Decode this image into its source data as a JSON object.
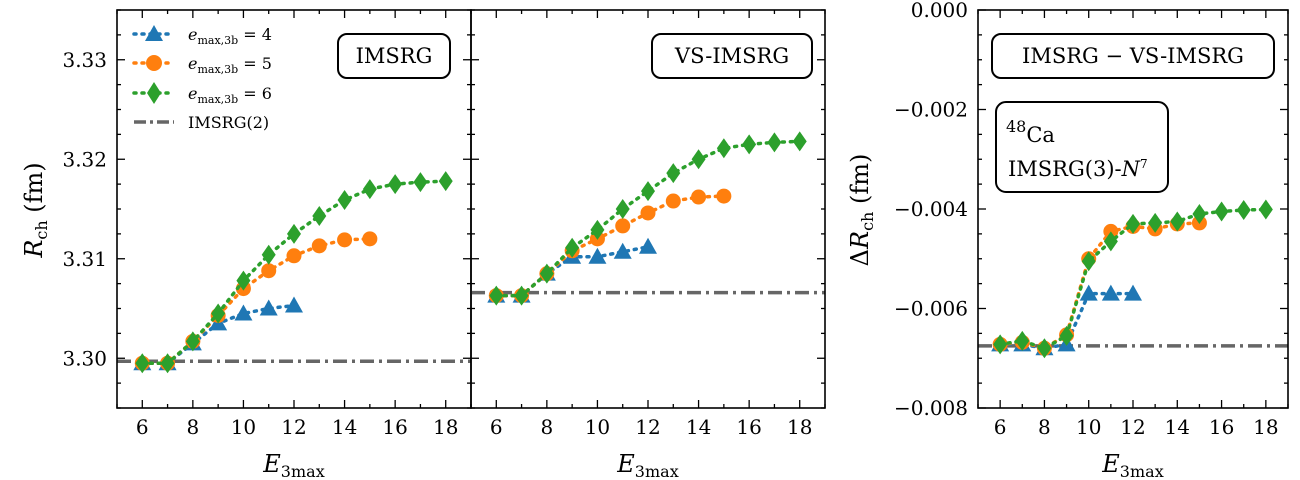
{
  "chart_data": [
    {
      "type": "line",
      "label_box": "IMSRG",
      "xlabel": "E3max",
      "ylabel": "Rch (fm)",
      "xlim": [
        5,
        19
      ],
      "ylim": [
        3.295,
        3.335
      ],
      "xticks": [
        6,
        8,
        10,
        12,
        14,
        16,
        18
      ],
      "yticks": [
        3.3,
        3.31,
        3.32,
        3.33
      ],
      "ytick_labels": [
        "3.30",
        "3.31",
        "3.32",
        "3.33"
      ],
      "reference_line": {
        "name": "IMSRG(2)",
        "y": 3.2997
      },
      "legend_position": "top-left",
      "series": [
        {
          "name": "emax,3b = 4",
          "color": "#1f77b4",
          "marker": "triangle",
          "x": [
            6,
            7,
            8,
            9,
            10,
            11,
            12
          ],
          "y": [
            3.2995,
            3.2995,
            3.3015,
            3.3035,
            3.3045,
            3.305,
            3.3053
          ]
        },
        {
          "name": "emax,3b = 5",
          "color": "#ff7f0e",
          "marker": "circle",
          "x": [
            6,
            7,
            8,
            9,
            10,
            11,
            12,
            13,
            14,
            15
          ],
          "y": [
            3.2995,
            3.2995,
            3.3017,
            3.3043,
            3.307,
            3.3088,
            3.3103,
            3.3113,
            3.3119,
            3.312
          ]
        },
        {
          "name": "emax,3b = 6",
          "color": "#2ca02c",
          "marker": "diamond",
          "x": [
            6,
            7,
            8,
            9,
            10,
            11,
            12,
            13,
            14,
            15,
            16,
            17,
            18
          ],
          "y": [
            3.2995,
            3.2995,
            3.3017,
            3.3045,
            3.3078,
            3.3104,
            3.3125,
            3.3143,
            3.3159,
            3.317,
            3.3175,
            3.3177,
            3.3178
          ]
        }
      ]
    },
    {
      "type": "line",
      "label_box": "VS-IMSRG",
      "xlabel": "E3max",
      "xlim": [
        5,
        19
      ],
      "ylim": [
        3.295,
        3.335
      ],
      "xticks": [
        6,
        8,
        10,
        12,
        14,
        16,
        18
      ],
      "reference_line": {
        "name": "IMSRG(2)",
        "y": 3.3066
      },
      "series": [
        {
          "name": "emax,3b = 4",
          "color": "#1f77b4",
          "marker": "triangle",
          "x": [
            6,
            7,
            8,
            9,
            10,
            11,
            12
          ],
          "y": [
            3.3063,
            3.3063,
            3.3085,
            3.3102,
            3.3102,
            3.3107,
            3.3112
          ]
        },
        {
          "name": "emax,3b = 5",
          "color": "#ff7f0e",
          "marker": "circle",
          "x": [
            6,
            7,
            8,
            9,
            10,
            11,
            12,
            13,
            14,
            15
          ],
          "y": [
            3.3063,
            3.3063,
            3.3085,
            3.3108,
            3.312,
            3.3133,
            3.3146,
            3.3158,
            3.3162,
            3.3163
          ]
        },
        {
          "name": "emax,3b = 6",
          "color": "#2ca02c",
          "marker": "diamond",
          "x": [
            6,
            7,
            8,
            9,
            10,
            11,
            12,
            13,
            14,
            15,
            16,
            17,
            18
          ],
          "y": [
            3.3063,
            3.3063,
            3.3085,
            3.3111,
            3.3129,
            3.315,
            3.3168,
            3.3186,
            3.32,
            3.3211,
            3.3215,
            3.3217,
            3.3218
          ]
        }
      ]
    },
    {
      "type": "line",
      "label_box": "IMSRG − VS-IMSRG",
      "nucleus_mass": "48",
      "nucleus_symbol": "Ca",
      "method_label": "IMSRG(3)-",
      "method_sym": "N",
      "method_exp": "7",
      "xlabel": "E3max",
      "ylabel": "ΔRch (fm)",
      "xlim": [
        5,
        19
      ],
      "ylim": [
        -0.008,
        0.0
      ],
      "xticks": [
        6,
        8,
        10,
        12,
        14,
        16,
        18
      ],
      "yticks": [
        0.0,
        -0.002,
        -0.004,
        -0.006,
        -0.008
      ],
      "ytick_labels": [
        "0.000",
        "−0.002",
        "−0.004",
        "−0.006",
        "−0.008"
      ],
      "reference_line": {
        "name": "IMSRG(2)",
        "y": -0.00675
      },
      "series": [
        {
          "name": "emax,3b = 4",
          "color": "#1f77b4",
          "marker": "triangle",
          "x": [
            6,
            7,
            8,
            9,
            10,
            11,
            12
          ],
          "y": [
            -0.00672,
            -0.00672,
            -0.0068,
            -0.00672,
            -0.0057,
            -0.0057,
            -0.0057
          ]
        },
        {
          "name": "emax,3b = 5",
          "color": "#ff7f0e",
          "marker": "circle",
          "x": [
            6,
            7,
            8,
            9,
            10,
            11,
            12,
            13,
            14,
            15
          ],
          "y": [
            -0.00672,
            -0.00668,
            -0.0068,
            -0.00653,
            -0.005,
            -0.00445,
            -0.00435,
            -0.0044,
            -0.0043,
            -0.00428
          ]
        },
        {
          "name": "emax,3b = 6",
          "color": "#2ca02c",
          "marker": "diamond",
          "x": [
            6,
            7,
            8,
            9,
            10,
            11,
            12,
            13,
            14,
            15,
            16,
            17,
            18
          ],
          "y": [
            -0.00672,
            -0.00665,
            -0.0068,
            -0.00655,
            -0.00505,
            -0.00465,
            -0.0043,
            -0.00428,
            -0.00425,
            -0.0041,
            -0.00405,
            -0.00402,
            -0.00401
          ]
        }
      ]
    }
  ],
  "legend": {
    "items": [
      {
        "base": "e",
        "sub": "max,3b",
        "rest": " = 4",
        "color": "#1f77b4",
        "marker": "triangle"
      },
      {
        "base": "e",
        "sub": "max,3b",
        "rest": " = 5",
        "color": "#ff7f0e",
        "marker": "circle"
      },
      {
        "base": "e",
        "sub": "max,3b",
        "rest": " = 6",
        "color": "#2ca02c",
        "marker": "diamond"
      },
      {
        "label": "IMSRG(2)",
        "color": "#666666",
        "marker": "dashdot"
      }
    ]
  },
  "labels": {
    "xlabel_main": "E",
    "xlabel_sub": "3max",
    "ylabel_left_main": "R",
    "ylabel_left_sub": "ch",
    "ylabel_left_unit": " (fm)",
    "ylabel_right_prefix": "Δ",
    "ylabel_right_main": "R",
    "ylabel_right_sub": "ch",
    "ylabel_right_unit": " (fm)"
  }
}
